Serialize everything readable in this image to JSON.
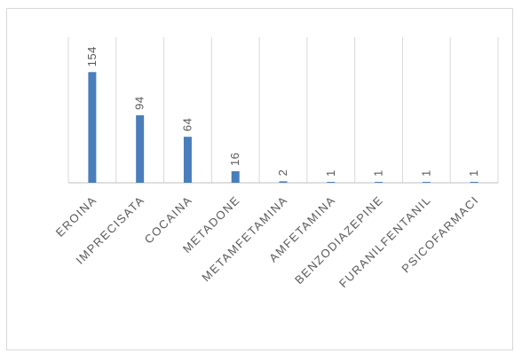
{
  "chart_data": {
    "type": "bar",
    "title": "",
    "xlabel": "",
    "ylabel": "",
    "categories": [
      "EROINA",
      "IMPRECISATA",
      "COCAINA",
      "METADONE",
      "METAMFETAMINA",
      "AMFETAMINA",
      "BENZODIAZEPINE",
      "FURANILFENTANIL",
      "PSICOFARMACI"
    ],
    "values": [
      154,
      94,
      64,
      16,
      2,
      1,
      1,
      1,
      1
    ],
    "ylim": [
      0,
      200
    ],
    "grid": "vertical separators between categories",
    "legend": "none",
    "colors": {
      "bar": "#4a7ebb",
      "grid": "#d9d9d9",
      "axis": "#bfbfbf",
      "label": "#595959"
    }
  }
}
